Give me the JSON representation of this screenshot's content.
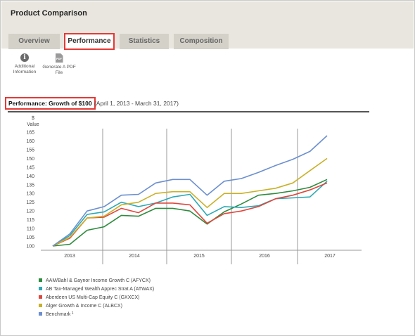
{
  "window": {
    "title": "Product Comparison"
  },
  "tabs": [
    {
      "label": "Overview",
      "active": false
    },
    {
      "label": "Performance",
      "active": true
    },
    {
      "label": "Statistics",
      "active": false
    },
    {
      "label": "Composition",
      "active": false
    }
  ],
  "toolbar": {
    "additional_info_label": "Additional Information",
    "pdf_label": "Generate A PDF File"
  },
  "performance": {
    "heading": "Performance: Growth of $100",
    "date_range": "(April 1, 2013 - March 31, 2017)"
  },
  "colors": {
    "highlight": "#e53935",
    "header_bg": "#e9e6df",
    "tab_bg": "#d4d1c9"
  },
  "chart_data": {
    "type": "line",
    "ylabel": "$ Value",
    "ylim": [
      100,
      165
    ],
    "yticks": [
      100,
      105,
      110,
      115,
      120,
      125,
      130,
      135,
      140,
      145,
      150,
      155,
      160,
      165
    ],
    "x_axis_labels": [
      "2013",
      "2014",
      "2015",
      "2016",
      "2017"
    ],
    "year_dividers": [
      "2014",
      "2015",
      "2016",
      "2017"
    ],
    "x_points": [
      "2013-03",
      "2013-06",
      "2013-09",
      "2013-12",
      "2014-03",
      "2014-06",
      "2014-09",
      "2014-12",
      "2015-03",
      "2015-06",
      "2015-09",
      "2015-12",
      "2016-03",
      "2016-06",
      "2016-09",
      "2016-12",
      "2017-03"
    ],
    "grid": false,
    "series": [
      {
        "name": "AAM/Bahl & Gaynor Income Growth C (AFYCX)",
        "color": "#2e8b3e",
        "values": [
          100,
          101,
          109,
          111,
          117.5,
          117,
          121.5,
          121.5,
          120,
          112.5,
          119.5,
          124,
          129,
          130,
          131.5,
          133.5,
          138
        ]
      },
      {
        "name": "AB Tax-Managed Wealth Apprec Strat A (ATWAX)",
        "color": "#2aa9b5",
        "values": [
          100,
          106,
          118,
          119.5,
          125,
          122.5,
          124.5,
          128,
          129.5,
          117.5,
          122.5,
          122,
          123,
          127,
          127.5,
          128,
          137
        ]
      },
      {
        "name": "Aberdeen US Multi-Cap Equity C (GXXCX)",
        "color": "#e0463c",
        "values": [
          100,
          104.5,
          116,
          116.5,
          121.5,
          119,
          124.5,
          124.5,
          123.5,
          113,
          118.5,
          120,
          122.5,
          127,
          129,
          132,
          136
        ]
      },
      {
        "name": "Alger Growth & Income C (ALBCX)",
        "color": "#c9b127",
        "values": [
          100,
          105,
          116,
          117,
          123.5,
          125,
          130,
          131,
          131,
          122,
          130,
          130,
          131.5,
          133,
          136,
          143,
          150
        ]
      },
      {
        "name": "Benchmark",
        "color": "#6b8fd0",
        "sup": "1",
        "values": [
          100,
          107,
          120,
          122.5,
          129,
          129.5,
          136,
          138,
          138,
          129,
          137,
          138.5,
          142,
          146,
          149.5,
          154,
          163
        ]
      }
    ]
  }
}
